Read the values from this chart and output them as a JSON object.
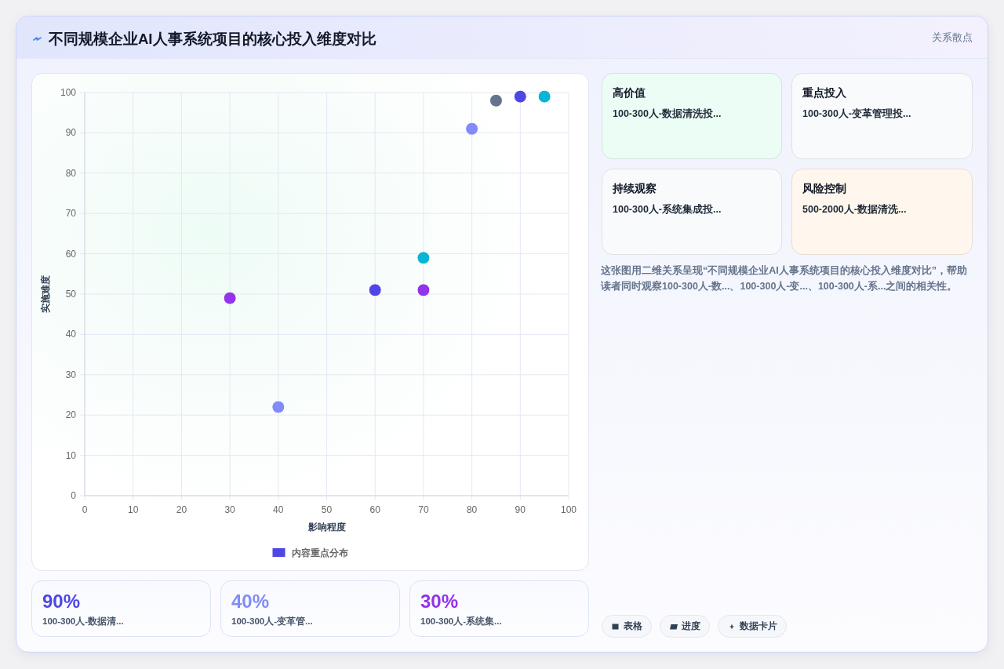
{
  "chart_data": [
    {
      "type": "scatter",
      "title": "不同规模企业AI人事系统项目的核心投入维度对比",
      "xlabel": "影响程度",
      "ylabel": "实施难度",
      "xlim": [
        0,
        100
      ],
      "ylim": [
        0,
        100
      ],
      "xticks": [
        0,
        10,
        20,
        30,
        40,
        50,
        60,
        70,
        80,
        90,
        100
      ],
      "yticks": [
        0,
        10,
        20,
        30,
        40,
        50,
        60,
        70,
        80,
        90,
        100
      ],
      "grid": true,
      "legend": "bottom",
      "marker": "circle",
      "series": [
        {
          "name": "内容重点分布",
          "color": "#4f46e5",
          "x": [
            30,
            40,
            60,
            70,
            70,
            80,
            85,
            90,
            95
          ],
          "values": [
            49,
            22,
            51,
            59,
            51,
            91,
            98,
            99,
            99
          ],
          "colors": [
            "#9333ea",
            "#818cf8",
            "#4f46e5",
            "#06b6d4",
            "#9333ea",
            "#818cf8",
            "#64748b",
            "#4f46e5",
            "#06b6d4"
          ]
        }
      ]
    },
    {
      "type": "other",
      "title": "高价值",
      "subtitle": "100-300人-数据清洗投...",
      "color": "#ecfdf5"
    },
    {
      "type": "other",
      "title": "重点投入",
      "subtitle": "100-300人-变革管理投...",
      "color": "#f8fafc"
    },
    {
      "type": "other",
      "title": "持续观察",
      "subtitle": "100-300人-系统集成投...",
      "color": "#f8fafc"
    },
    {
      "type": "other",
      "title": "风险控制",
      "subtitle": "500-2000人-数据清洗...",
      "color": "#fff7ed"
    },
    {
      "type": "other",
      "annotations": [
        "这张图用二维关系呈现“不同规模企业AI人事系统项目的核心投入维度对比”，帮助读者同时观察100-300人-数...、100-300人-变...、100-300人-系...之间的相关性。"
      ]
    },
    {
      "type": "other",
      "title": "90%",
      "subtitle": "100-300人-数据清...",
      "color": "#4f46e5"
    },
    {
      "type": "other",
      "title": "40%",
      "subtitle": "100-300人-变革管...",
      "color": "#818cf8"
    },
    {
      "type": "other",
      "title": "30%",
      "subtitle": "100-300人-系统集...",
      "color": "#9333ea"
    },
    {
      "type": "other",
      "annotations": [
        "表格",
        "进度",
        "数据卡片"
      ]
    },
    {
      "type": "other",
      "annotations": [
        "关系散点"
      ]
    }
  ]
}
